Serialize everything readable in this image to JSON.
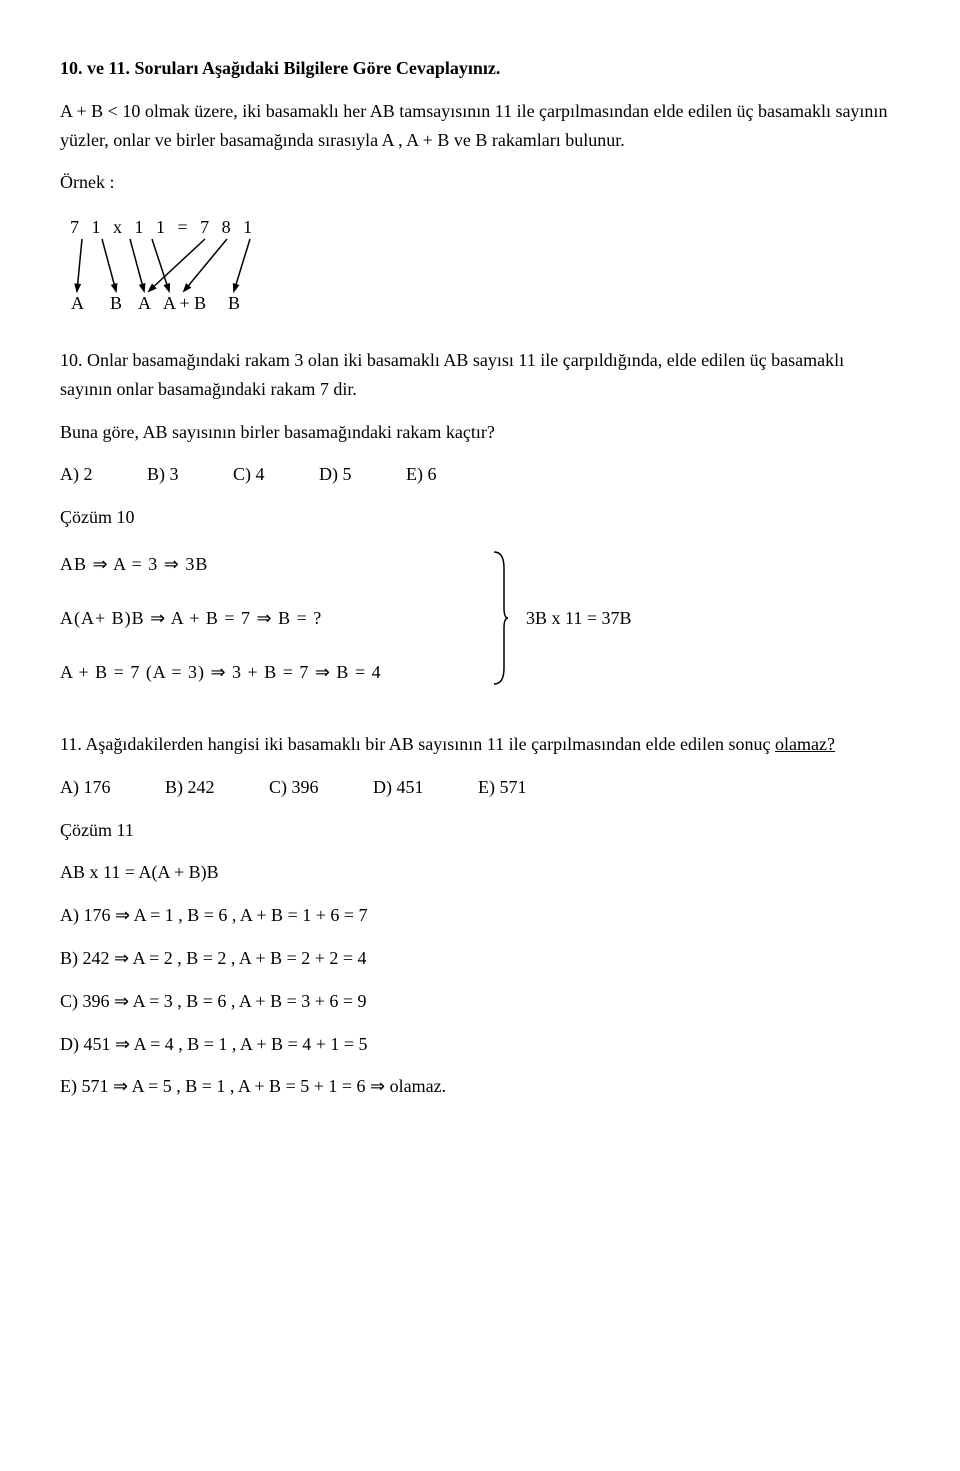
{
  "heading": "10. ve 11. Soruları Aşağıdaki Bilgilere Göre Cevaplayınız.",
  "intro_p1": "A + B < 10 olmak üzere, iki basamaklı her AB tamsayısının 11 ile çarpılmasından elde edilen üç basamaklı sayının yüzler, onlar ve birler basamağında sırasıyla A , A + B ve B rakamları bulunur.",
  "ornek_label": "Örnek :",
  "diagram": {
    "top": "7 1 x 1 1 = 7 8 1",
    "letters": [
      "A",
      "B",
      "A",
      "A + B",
      "B"
    ],
    "top_positions": [
      12,
      32,
      60,
      82,
      135,
      157,
      180
    ],
    "letter_positions": [
      1,
      40,
      68,
      93,
      158
    ]
  },
  "q10_text": "10. Onlar basamağındaki rakam 3 olan iki basamaklı AB sayısı 11 ile çarpıldığında, elde edilen üç basamaklı sayının onlar basamağındaki rakam 7 dir.",
  "q10_text2": "Buna göre, AB sayısının birler basamağındaki rakam kaçtır?",
  "q10_options": {
    "A": "A) 2",
    "B": "B) 3",
    "C": "C) 4",
    "D": "D) 5",
    "E": "E) 6"
  },
  "cozum10": "Çözüm 10",
  "sol10_line1": "AB   ⇒   A = 3   ⇒   3B",
  "sol10_line2": "A(A+ B)B    ⇒    A + B = 7   ⇒   B = ?",
  "sol10_line3": "A + B = 7   (A = 3)    ⇒    3 + B = 7   ⇒   B = 4",
  "sol10_right": "3B x 11 = 37B",
  "q11_text_pre": "11. Aşağıdakilerden hangisi iki basamaklı bir AB sayısının 11 ile çarpılmasından elde edilen sonuç ",
  "q11_text_ul": "olamaz?",
  "q11_options": {
    "A": "A) 176",
    "B": "B) 242",
    "C": "C) 396",
    "D": "D) 451",
    "E": "E) 571"
  },
  "cozum11": "Çözüm 11",
  "sol11_line0": "AB x 11 = A(A + B)B",
  "sol11_A": "A) 176    ⇒    A = 1  ,  B = 6  , A + B = 1 + 6 = 7",
  "sol11_B": "B) 242    ⇒    A = 2  ,  B = 2  , A + B = 2 + 2 = 4",
  "sol11_C": "C) 396    ⇒    A = 3  ,  B = 6  , A + B = 3 + 6 = 9",
  "sol11_D": "D) 451    ⇒    A = 4  ,  B = 1  , A + B = 4 + 1 = 5",
  "sol11_E": "E) 571    ⇒    A = 5  ,  B = 1  , A + B = 5 + 1 = 6      ⇒     olamaz."
}
